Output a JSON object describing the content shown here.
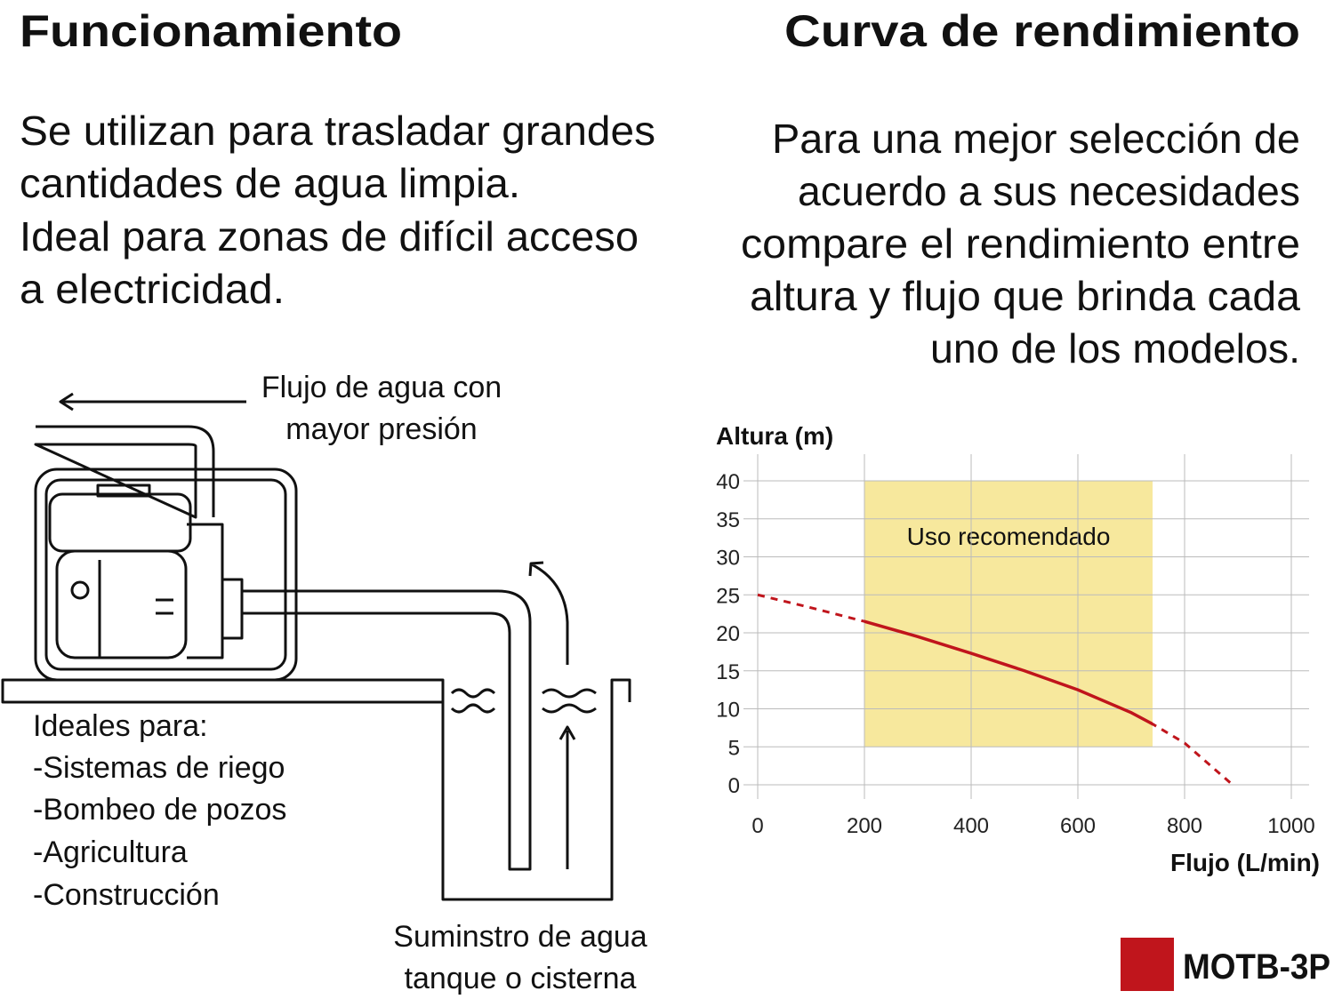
{
  "left": {
    "title": "Funcionamiento",
    "description": [
      "Se utilizan para trasladar grandes",
      "cantidades de agua limpia.",
      "Ideal para zonas de difícil acceso",
      "a electricidad."
    ],
    "diagram": {
      "outflow_label": [
        "Flujo de agua con",
        "mayor presión"
      ],
      "supply_label": [
        "Suminstro de agua",
        "tanque o cisterna"
      ],
      "uses_title": "Ideales para:",
      "uses": [
        "-Sistemas de riego",
        "-Bombeo de pozos",
        "-Agricultura",
        "-Construcción"
      ]
    }
  },
  "right": {
    "title": "Curva de rendimiento",
    "description": [
      "Para una mejor selección de",
      "acuerdo a sus necesidades",
      "compare el rendimiento entre",
      "altura y flujo que brinda cada",
      "uno de los modelos."
    ]
  },
  "chart_data": {
    "type": "line",
    "y_label": "Altura (m)",
    "x_label": "Flujo (L/min)",
    "x": [
      0,
      100,
      200,
      300,
      400,
      500,
      600,
      700,
      740,
      800,
      890
    ],
    "series": [
      {
        "name": "MOTB-3P",
        "color": "#c0151c",
        "values": [
          25,
          23.3,
          21.5,
          19.5,
          17.3,
          15,
          12.5,
          9.5,
          8,
          5.5,
          0
        ]
      }
    ],
    "xlim": [
      0,
      1000
    ],
    "ylim": [
      0,
      40
    ],
    "xticks": [
      0,
      200,
      400,
      600,
      800,
      1000
    ],
    "yticks": [
      0,
      5,
      10,
      15,
      20,
      25,
      30,
      35,
      40
    ],
    "grid": true,
    "legend": "bottom-right",
    "recommended_range": {
      "label": "Uso recomendado",
      "xlim": [
        200,
        740
      ],
      "ylim": [
        5,
        40
      ],
      "color": "#f7e89d"
    }
  }
}
